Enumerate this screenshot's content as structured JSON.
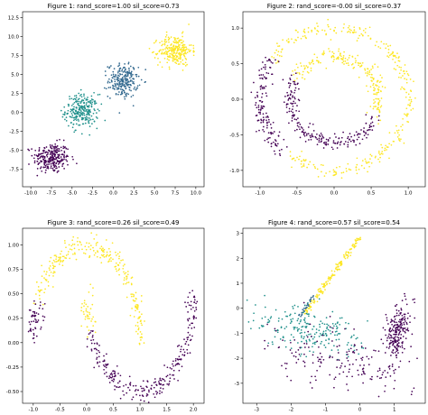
{
  "chart_data": [
    {
      "type": "scatter",
      "title": "Figure 1: rand_score=1.00 sil_score=0.73",
      "xlim": [
        -11,
        11
      ],
      "ylim": [
        -9.8,
        13.3
      ],
      "xticks": [
        "-10.0",
        "-7.5",
        "-5.0",
        "-2.5",
        "0.0",
        "2.5",
        "5.0",
        "7.5",
        "10.0"
      ],
      "xtick_values": [
        -10,
        -7.5,
        -5,
        -2.5,
        0,
        2.5,
        5,
        7.5,
        10
      ],
      "yticks": [
        "-7.5",
        "-5.0",
        "-2.5",
        "0.0",
        "2.5",
        "5.0",
        "7.5",
        "10.0",
        "12.5"
      ],
      "ytick_values": [
        -7.5,
        -5,
        -2.5,
        0,
        2.5,
        5,
        7.5,
        10,
        12.5
      ],
      "grid": false,
      "clusters": [
        {
          "shape": "blob",
          "cx": -7.5,
          "cy": -6.0,
          "sx": 1.1,
          "sy": 1.0,
          "n": 260,
          "color": "#440154"
        },
        {
          "shape": "blob",
          "cx": -3.8,
          "cy": 0.2,
          "sx": 1.0,
          "sy": 1.1,
          "n": 260,
          "color": "#21918c"
        },
        {
          "shape": "blob",
          "cx": 1.2,
          "cy": 4.2,
          "sx": 0.9,
          "sy": 1.1,
          "n": 230,
          "color": "#31688e"
        },
        {
          "shape": "blob",
          "cx": 7.5,
          "cy": 8.2,
          "sx": 1.0,
          "sy": 1.0,
          "n": 260,
          "color": "#fde725"
        }
      ]
    },
    {
      "type": "scatter",
      "title": "Figure 2: rand_score=-0.00 sil_score=0.37",
      "xlim": [
        -1.23,
        1.23
      ],
      "ylim": [
        -1.23,
        1.23
      ],
      "xticks": [
        "-1.0",
        "-0.5",
        "0.0",
        "0.5",
        "1.0"
      ],
      "xtick_values": [
        -1,
        -0.5,
        0,
        0.5,
        1
      ],
      "yticks": [
        "-1.0",
        "-0.5",
        "0.0",
        "0.5",
        "1.0"
      ],
      "ytick_values": [
        -1,
        -0.5,
        0,
        0.5,
        1
      ],
      "grid": false,
      "clusters": [
        {
          "shape": "ring",
          "r": 1.0,
          "noise": 0.05,
          "theta_min": -2.3,
          "theta_max": 2.55,
          "n": 300,
          "color": "#fde725"
        },
        {
          "shape": "ring",
          "r": 1.0,
          "noise": 0.05,
          "theta_min": 2.55,
          "theta_max": 3.98,
          "n": 140,
          "color": "#440154"
        },
        {
          "shape": "ring",
          "r": 0.6,
          "noise": 0.05,
          "theta_min": -0.5,
          "theta_max": 2.6,
          "n": 200,
          "color": "#fde725"
        },
        {
          "shape": "ring",
          "r": 0.6,
          "noise": 0.05,
          "theta_min": 2.6,
          "theta_max": 5.78,
          "n": 210,
          "color": "#440154"
        }
      ]
    },
    {
      "type": "scatter",
      "title": "Figure 3: rand_score=0.26 sil_score=0.49",
      "xlim": [
        -1.2,
        2.2
      ],
      "ylim": [
        -0.62,
        1.17
      ],
      "xticks": [
        "-1.0",
        "-0.5",
        "0.0",
        "0.5",
        "1.0",
        "1.5",
        "2.0"
      ],
      "xtick_values": [
        -1,
        -0.5,
        0,
        0.5,
        1,
        1.5,
        2
      ],
      "yticks": [
        "-0.50",
        "-0.25",
        "0.00",
        "0.25",
        "0.50",
        "0.75",
        "1.00"
      ],
      "ytick_values": [
        -0.5,
        -0.25,
        0,
        0.25,
        0.5,
        0.75,
        1.0
      ],
      "grid": false,
      "clusters": [
        {
          "shape": "moon_upper",
          "noise": 0.06,
          "t_min": 0.0,
          "t_max": 0.85,
          "n": 260,
          "color": "#fde725"
        },
        {
          "shape": "moon_upper",
          "noise": 0.06,
          "t_min": 0.85,
          "t_max": 1.0,
          "n": 50,
          "color": "#440154"
        },
        {
          "shape": "moon_lower",
          "noise": 0.06,
          "t_min": 0.0,
          "t_max": 0.12,
          "n": 40,
          "color": "#fde725"
        },
        {
          "shape": "moon_lower",
          "noise": 0.06,
          "t_min": 0.12,
          "t_max": 1.0,
          "n": 260,
          "color": "#440154"
        }
      ]
    },
    {
      "type": "scatter",
      "title": "Figure 4: rand_score=0.57 sil_score=0.54",
      "xlim": [
        -3.4,
        1.9
      ],
      "ylim": [
        -3.8,
        3.2
      ],
      "xticks": [
        "-3",
        "-2",
        "-1",
        "0",
        "1"
      ],
      "xtick_values": [
        -3,
        -2,
        -1,
        0,
        1
      ],
      "yticks": [
        "-3",
        "-2",
        "-1",
        "0",
        "1",
        "2",
        "3"
      ],
      "ytick_values": [
        -3,
        -2,
        -1,
        0,
        1,
        2,
        3
      ],
      "grid": false,
      "clusters": [
        {
          "shape": "line",
          "x0": -1.6,
          "y0": -0.2,
          "x1": 0.0,
          "y1": 2.85,
          "noise": 0.04,
          "n": 170,
          "color": "#fde725"
        },
        {
          "shape": "line",
          "x0": -1.75,
          "y0": -0.35,
          "x1": -1.35,
          "y1": 0.5,
          "noise": 0.03,
          "n": 35,
          "color": "#31688e"
        },
        {
          "shape": "cloud",
          "cx": -1.5,
          "cy": -0.9,
          "sx": 0.75,
          "sy": 0.45,
          "rot": -0.35,
          "n": 220,
          "color": "#21918c"
        },
        {
          "shape": "cloud",
          "cx": 1.1,
          "cy": -1.0,
          "sx": 0.18,
          "sy": 0.65,
          "rot": -0.15,
          "n": 220,
          "color": "#440154"
        },
        {
          "shape": "cloud",
          "cx": -0.7,
          "cy": -2.1,
          "sx": 1.1,
          "sy": 0.55,
          "rot": -0.35,
          "n": 160,
          "color": "#440154"
        }
      ]
    }
  ]
}
